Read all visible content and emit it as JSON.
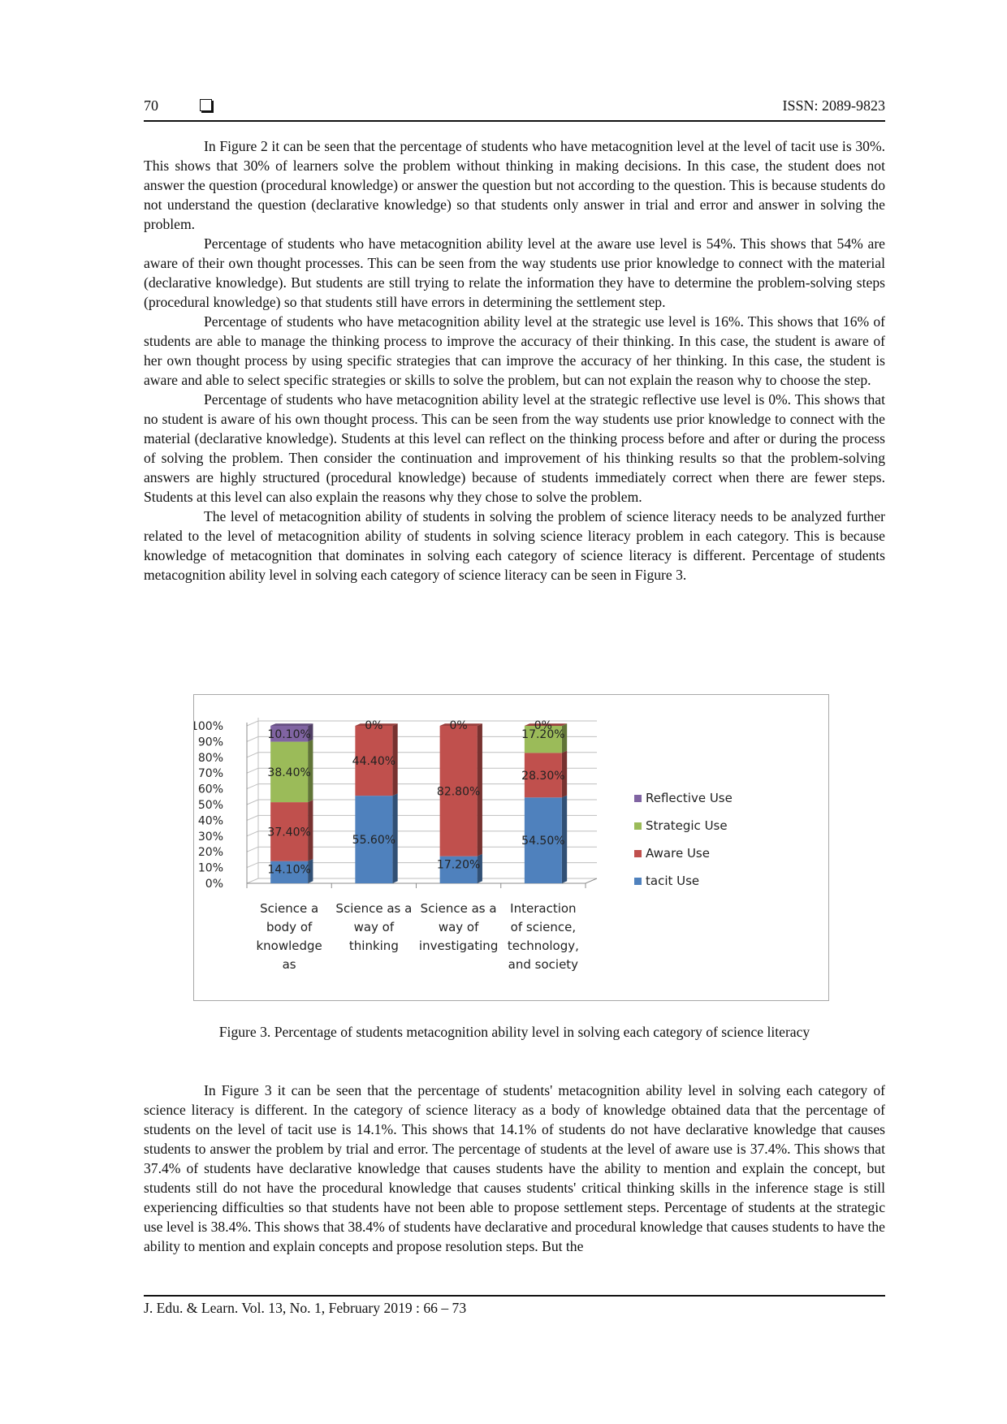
{
  "header": {
    "page_number": "70",
    "issn": "ISSN: 2089-9823"
  },
  "paragraphs_top": [
    "In Figure 2 it can be seen that the percentage of students who have metacognition level at the level of tacit use is 30%. This shows that 30% of learners solve the problem without thinking in making decisions. In this case, the student does not answer the question (procedural knowledge) or answer the question but not according to the question. This is because students do not understand the question (declarative knowledge) so that students only answer in trial and error and answer in solving the problem.",
    "Percentage of students who have metacognition ability level at the aware use level is 54%. This shows that 54% are aware of their own thought processes. This can be seen from the way students use prior knowledge to connect with the material (declarative knowledge). But students are still trying to relate the information they have to determine the problem-solving steps (procedural knowledge) so that students still have errors in determining the settlement step.",
    "Percentage of students who have metacognition ability level at the strategic use level is 16%. This shows that 16% of students are able to manage the thinking process to improve the accuracy of their thinking. In this case, the student is aware of her own thought process by using specific strategies that can improve the accuracy of her thinking. In this case, the student is aware and able to select specific strategies or skills to solve the problem, but can not explain the reason why to choose the step.",
    "Percentage of students who have metacognition ability level at the strategic reflective use level is 0%. This shows that no student is aware of his own thought process. This can be seen from the way students use prior knowledge to connect with the material (declarative knowledge). Students at this level can reflect on the thinking process before and after or during the process of solving the problem. Then consider the continuation and improvement of his thinking results so that the problem-solving answers are highly structured (procedural knowledge) because of students immediately correct when there are fewer steps. Students at this level can also explain the reasons why they chose to solve the problem.",
    "The level of metacognition ability of students in solving the problem of science literacy needs to be analyzed further related to the level of metacognition ability of students in solving science literacy problem in each category. This is because knowledge of metacognition that dominates in solving each category of science literacy is different. Percentage of students metacognition ability level in solving each category of science literacy can be seen in Figure 3."
  ],
  "figure": {
    "caption": "Figure 3. Percentage of students metacognition ability level in solving each category of science literacy"
  },
  "chart_data": {
    "type": "bar",
    "stacked": true,
    "three_d": true,
    "categories": [
      [
        "Science a",
        "body of",
        "knowledge",
        "as"
      ],
      [
        "Science as a",
        "way of",
        "thinking"
      ],
      [
        "Science as a",
        "way of",
        "investigating"
      ],
      [
        "Interaction",
        "of science,",
        "technology,",
        "and society"
      ]
    ],
    "series": [
      {
        "name": "tacit Use",
        "color": "#4f81bd",
        "values": [
          14.1,
          55.6,
          17.2,
          54.5
        ],
        "labels": [
          "14.10%",
          "55.60%",
          "17.20%",
          "54.50%"
        ]
      },
      {
        "name": "Aware Use",
        "color": "#c0504d",
        "values": [
          37.4,
          44.4,
          82.8,
          28.3
        ],
        "labels": [
          "37.40%",
          "44.40%",
          "82.80%",
          "28.30%"
        ]
      },
      {
        "name": "Strategic Use",
        "color": "#9bbb59",
        "values": [
          38.4,
          0,
          0,
          17.2
        ],
        "labels": [
          "38.40%",
          "0%",
          "0%",
          "17.20%"
        ]
      },
      {
        "name": "Reflective Use",
        "color": "#8064a2",
        "values": [
          10.1,
          0,
          0,
          0
        ],
        "labels": [
          "10.10%",
          "",
          "",
          "0%"
        ]
      }
    ],
    "y_ticks": [
      "0%",
      "10%",
      "20%",
      "30%",
      "40%",
      "50%",
      "60%",
      "70%",
      "80%",
      "90%",
      "100%"
    ],
    "ylim": [
      0,
      100
    ],
    "legend_position": "right",
    "gridlines": true
  },
  "paragraphs_bottom": [
    "In Figure 3 it can be seen that the percentage of students' metacognition ability level in solving each category of science literacy is different. In the category of science literacy as a body of knowledge obtained data that the percentage of students on the level of tacit use is 14.1%. This shows that 14.1% of students do not have declarative knowledge that causes students to answer the problem by trial and error. The percentage of students at the level of aware use is 37.4%. This shows that 37.4% of students have declarative knowledge that causes students have the ability to mention and explain the concept, but students still do not have the procedural knowledge that causes students' critical thinking skills in the inference stage is still experiencing difficulties so that students have not been able to propose settlement steps. Percentage of students at the strategic use level is 38.4%. This shows that 38.4% of students have declarative and procedural knowledge that causes students to have the ability to mention and explain concepts and propose resolution steps. But the"
  ],
  "footer": {
    "citation": "J. Edu. & Learn. Vol. 13, No. 1, February 2019 :  66 – 73"
  }
}
